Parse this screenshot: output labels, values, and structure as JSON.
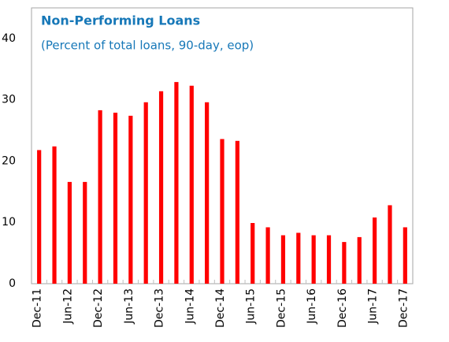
{
  "chart_data": {
    "type": "bar",
    "title": "Non-Performing Loans",
    "subtitle": "(Percent of total loans, 90-day, eop)",
    "categories": [
      "Dec-11",
      null,
      "Jun-12",
      null,
      "Dec-12",
      null,
      "Jun-13",
      null,
      "Dec-13",
      null,
      "Jun-14",
      null,
      "Dec-14",
      null,
      "Jun-15",
      null,
      "Dec-15",
      null,
      "Jun-16",
      null,
      "Dec-16",
      null,
      "Jun-17",
      null,
      "Dec-17"
    ],
    "values": [
      21.8,
      22.4,
      16.6,
      16.6,
      28.3,
      27.9,
      27.4,
      29.6,
      31.4,
      32.9,
      32.3,
      29.6,
      23.6,
      23.3,
      9.9,
      9.2,
      7.9,
      8.3,
      7.9,
      7.9,
      6.8,
      7.6,
      10.8,
      12.8,
      9.2
    ],
    "color": "#ff0000",
    "ylim": [
      0,
      45
    ],
    "yticks": [
      0,
      10,
      20,
      30,
      40
    ],
    "grid": false
  }
}
